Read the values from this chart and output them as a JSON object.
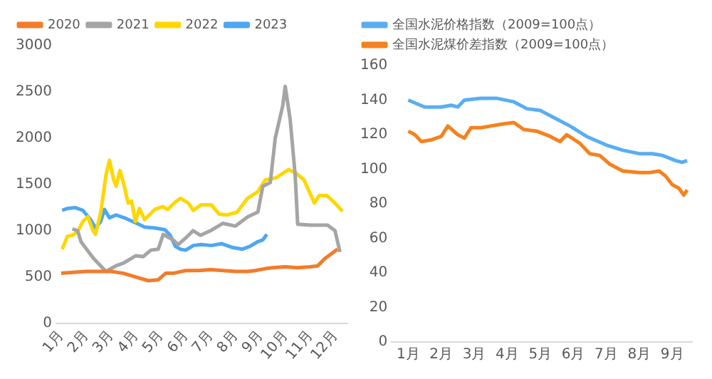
{
  "chart_data": [
    {
      "type": "line",
      "legend": "top",
      "marker": "none",
      "grid": false,
      "xlim": [
        0.8,
        12.5
      ],
      "xticks": [
        {
          "value": 1,
          "label": "1月"
        },
        {
          "value": 2,
          "label": "2月"
        },
        {
          "value": 3,
          "label": "3月"
        },
        {
          "value": 4,
          "label": "4月"
        },
        {
          "value": 5,
          "label": "5月"
        },
        {
          "value": 6,
          "label": "6月"
        },
        {
          "value": 7,
          "label": "7月"
        },
        {
          "value": 8,
          "label": "8月"
        },
        {
          "value": 9,
          "label": "9月"
        },
        {
          "value": 10,
          "label": "10月"
        },
        {
          "value": 11,
          "label": "11月"
        },
        {
          "value": 12,
          "label": "12月"
        }
      ],
      "ylim": [
        0,
        3000
      ],
      "yticks": [
        0,
        500,
        1000,
        1500,
        2000,
        2500,
        3000
      ],
      "series": [
        {
          "name": "2020",
          "color": "#f47b2a",
          "x": [
            1.0,
            1.5,
            2,
            2.5,
            3,
            3.5,
            4,
            4.5,
            4.9,
            5.2,
            5.5,
            6,
            6.5,
            7,
            7.5,
            8,
            8.5,
            8.8,
            9.2,
            9.5,
            10,
            10.5,
            11,
            11.3,
            11.6,
            11.9,
            12.1
          ],
          "values": [
            540,
            550,
            560,
            560,
            560,
            540,
            500,
            460,
            470,
            540,
            540,
            570,
            570,
            580,
            570,
            560,
            560,
            570,
            590,
            600,
            610,
            600,
            610,
            620,
            700,
            760,
            800
          ]
        },
        {
          "name": "2021",
          "color": "#a5a5a5",
          "x": [
            1.45,
            1.66,
            1.8,
            2.3,
            2.8,
            3.2,
            3.5,
            4,
            4.3,
            4.6,
            4.9,
            5.1,
            5.5,
            5.7,
            6,
            6.3,
            6.6,
            7,
            7.5,
            8,
            8.5,
            8.9,
            9.1,
            9.4,
            9.6,
            9.9,
            10.0,
            10.2,
            10.4,
            10.5,
            11,
            11.7,
            12.0,
            12.2
          ],
          "values": [
            1020,
            1000,
            880,
            700,
            560,
            620,
            650,
            730,
            720,
            790,
            800,
            960,
            900,
            850,
            920,
            1000,
            950,
            1000,
            1080,
            1050,
            1150,
            1200,
            1480,
            1520,
            2000,
            2350,
            2560,
            2200,
            1600,
            1070,
            1060,
            1060,
            1000,
            770
          ]
        },
        {
          "name": "2022",
          "color": "#ffd700",
          "x": [
            1.04,
            1.25,
            1.45,
            1.66,
            1.87,
            2.07,
            2.28,
            2.38,
            2.59,
            2.8,
            2.94,
            3.11,
            3.21,
            3.36,
            3.52,
            3.69,
            3.83,
            3.98,
            4.14,
            4.35,
            4.76,
            5.07,
            5.28,
            5.59,
            5.79,
            6.1,
            6.31,
            6.62,
            7.03,
            7.34,
            7.65,
            8.07,
            8.48,
            8.89,
            9.2,
            9.62,
            10.13,
            10.44,
            10.75,
            11.17,
            11.37,
            11.68,
            11.99,
            12.3
          ],
          "values": [
            800,
            940,
            950,
            990,
            1100,
            1150,
            1000,
            960,
            1200,
            1600,
            1760,
            1550,
            1480,
            1650,
            1500,
            1300,
            1320,
            1100,
            1240,
            1120,
            1230,
            1260,
            1230,
            1310,
            1350,
            1300,
            1220,
            1280,
            1280,
            1180,
            1170,
            1200,
            1350,
            1420,
            1550,
            1570,
            1660,
            1620,
            1550,
            1300,
            1380,
            1380,
            1300,
            1210
          ]
        },
        {
          "name": "2023",
          "color": "#4ea7f2",
          "x": [
            1.04,
            1.25,
            1.56,
            1.87,
            2.18,
            2.38,
            2.59,
            2.74,
            2.94,
            3.21,
            3.62,
            4.04,
            4.35,
            4.76,
            5.17,
            5.38,
            5.59,
            5.79,
            6.0,
            6.31,
            6.62,
            7.03,
            7.45,
            7.86,
            8.27,
            8.58,
            8.89,
            9.1,
            9.26
          ],
          "values": [
            1220,
            1240,
            1250,
            1220,
            1120,
            1030,
            1100,
            1230,
            1140,
            1170,
            1130,
            1080,
            1040,
            1030,
            1010,
            950,
            830,
            800,
            790,
            840,
            850,
            840,
            860,
            820,
            800,
            830,
            880,
            900,
            960
          ]
        }
      ]
    },
    {
      "type": "line",
      "legend": "top",
      "marker": "none",
      "grid": false,
      "xlim": [
        0.5,
        9.6
      ],
      "xticks": [
        {
          "value": 1,
          "label": "1月"
        },
        {
          "value": 2,
          "label": "2月"
        },
        {
          "value": 3,
          "label": "3月"
        },
        {
          "value": 4,
          "label": "4月"
        },
        {
          "value": 5,
          "label": "5月"
        },
        {
          "value": 6,
          "label": "6月"
        },
        {
          "value": 7,
          "label": "7月"
        },
        {
          "value": 8,
          "label": "8月"
        },
        {
          "value": 9,
          "label": "9月"
        }
      ],
      "ylim": [
        0,
        160
      ],
      "yticks": [
        0,
        20,
        40,
        60,
        80,
        100,
        120,
        140,
        160
      ],
      "series": [
        {
          "name": "全国水泥价格指数（2009=100点）",
          "color": "#5aaef0",
          "x": [
            1,
            1.5,
            2,
            2.3,
            2.5,
            2.7,
            3.2,
            3.7,
            4.2,
            4.6,
            5,
            5.4,
            5.9,
            6.4,
            7,
            7.5,
            8,
            8.4,
            8.7,
            9.1,
            9.3,
            9.45
          ],
          "values": [
            140,
            136,
            136,
            137,
            136,
            140,
            141,
            141,
            139,
            135,
            134,
            130,
            125,
            119,
            114,
            111,
            109,
            109,
            108,
            105,
            104,
            105
          ]
        },
        {
          "name": "全国水泥煤价差指数（2009=100点）",
          "color": "#f5821f",
          "x": [
            1,
            1.2,
            1.4,
            1.7,
            2,
            2.2,
            2.5,
            2.7,
            2.9,
            3.2,
            3.5,
            3.8,
            4.2,
            4.5,
            4.9,
            5.3,
            5.6,
            5.8,
            6.2,
            6.5,
            6.8,
            7.1,
            7.5,
            8,
            8.3,
            8.6,
            8.8,
            9.0,
            9.2,
            9.35,
            9.45
          ],
          "values": [
            122,
            120,
            116,
            117,
            119,
            125,
            120,
            118,
            124,
            124,
            125,
            126,
            127,
            123,
            122,
            119,
            116,
            120,
            115,
            109,
            108,
            103,
            99,
            98,
            98,
            99,
            96,
            91,
            89,
            85,
            88
          ]
        }
      ]
    }
  ]
}
